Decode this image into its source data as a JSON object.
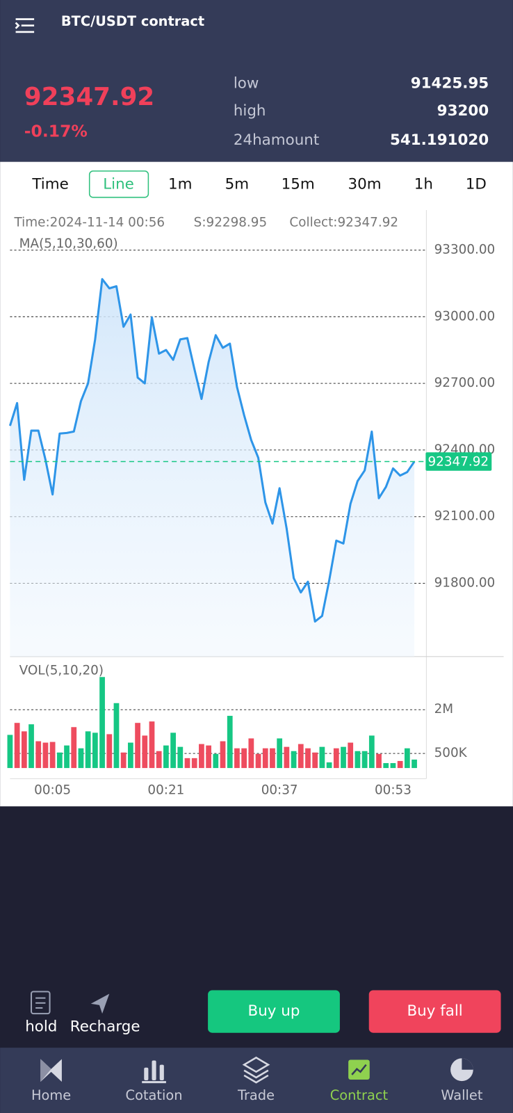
{
  "header": {
    "title": "BTC/USDT contract"
  },
  "ticker": {
    "price": "92347.92",
    "change": "-0.17%",
    "stats": [
      {
        "label": "low",
        "value": "91425.95"
      },
      {
        "label": "high",
        "value": "93200"
      },
      {
        "label": "24hamount",
        "value": "541.191020"
      }
    ]
  },
  "tabs": {
    "items": [
      "Time",
      "Line",
      "1m",
      "5m",
      "15m",
      "30m",
      "1h",
      "1D"
    ],
    "active": 1
  },
  "chart_data": [
    {
      "type": "line",
      "info": [
        "Time:2024-11-14 00:56",
        "S:92298.95",
        "Collect:92347.92"
      ],
      "legend": "MA(5,10,30,60)",
      "series": [
        {
          "color": "#2e95e8",
          "values": [
            92509,
            92611,
            92266,
            92487,
            92487,
            92356,
            92200,
            92474,
            92477,
            92483,
            92620,
            92700,
            92898,
            93169,
            93128,
            93137,
            92955,
            93010,
            92726,
            92700,
            92997,
            92834,
            92850,
            92806,
            92898,
            92904,
            92764,
            92630,
            92796,
            92917,
            92860,
            92879,
            92684,
            92557,
            92445,
            92365,
            92164,
            92069,
            92228,
            92046,
            91823,
            91759,
            91807,
            91628,
            91653,
            91813,
            91992,
            91979,
            92158,
            92260,
            92308,
            92483,
            92183,
            92234,
            92317,
            92285,
            92301,
            92347.92
          ]
        }
      ],
      "ylim": [
        91470,
        93480
      ],
      "yticks": [
        {
          "value": 91800,
          "label": "91800.00"
        },
        {
          "value": 92100,
          "label": "92100.00"
        },
        {
          "value": 92400,
          "label": "92400.00"
        },
        {
          "value": 92700,
          "label": "92700.00"
        },
        {
          "value": 93000,
          "label": "93000.00"
        },
        {
          "value": 93300,
          "label": "93300.00"
        }
      ],
      "grid": true,
      "current_price": 92347.92,
      "current_color": "#16c784"
    },
    {
      "type": "bar",
      "legend": "VOL(5,10,20)",
      "categories": [
        null,
        null,
        null,
        null,
        null,
        null,
        "00:05",
        null,
        null,
        null,
        null,
        null,
        null,
        null,
        null,
        null,
        null,
        null,
        null,
        null,
        null,
        null,
        "00:21",
        null,
        null,
        null,
        null,
        null,
        null,
        null,
        null,
        null,
        null,
        null,
        null,
        null,
        null,
        null,
        "00:37",
        null,
        null,
        null,
        null,
        null,
        null,
        null,
        null,
        null,
        null,
        null,
        null,
        null,
        null,
        null,
        "00:53",
        null,
        null,
        null
      ],
      "series": [
        {
          "values": [
            1137000,
            1548000,
            1258000,
            1500000,
            919000,
            871000,
            895000,
            532000,
            774000,
            1403000,
            677000,
            1258000,
            1210000,
            3121000,
            1161000,
            2226000,
            532000,
            871000,
            1548000,
            1113000,
            1597000,
            581000,
            774000,
            1210000,
            726000,
            339000,
            339000,
            823000,
            774000,
            484000,
            919000,
            1790000,
            677000,
            677000,
            1016000,
            484000,
            677000,
            677000,
            1016000,
            726000,
            581000,
            823000,
            677000,
            532000,
            726000,
            194000,
            677000,
            726000,
            871000,
            581000,
            581000,
            1113000,
            484000,
            169000,
            169000,
            242000,
            677000,
            290000
          ],
          "colors": [
            "#16c784",
            "#ee4c5f",
            "#ee4c5f",
            "#16c784",
            "#ee4c5f",
            "#ee4c5f",
            "#ee4c5f",
            "#16c784",
            "#16c784",
            "#ee4c5f",
            "#16c784",
            "#16c784",
            "#16c784",
            "#16c784",
            "#ee4c5f",
            "#16c784",
            "#ee4c5f",
            "#16c784",
            "#ee4c5f",
            "#ee4c5f",
            "#ee4c5f",
            "#ee4c5f",
            "#16c784",
            "#16c784",
            "#16c784",
            "#ee4c5f",
            "#ee4c5f",
            "#ee4c5f",
            "#ee4c5f",
            "#16c784",
            "#ee4c5f",
            "#16c784",
            "#ee4c5f",
            "#ee4c5f",
            "#ee4c5f",
            "#ee4c5f",
            "#ee4c5f",
            "#ee4c5f",
            "#16c784",
            "#ee4c5f",
            "#16c784",
            "#ee4c5f",
            "#ee4c5f",
            "#ee4c5f",
            "#16c784",
            "#16c784",
            "#ee4c5f",
            "#16c784",
            "#ee4c5f",
            "#16c784",
            "#16c784",
            "#16c784",
            "#ee4c5f",
            "#16c784",
            "#16c784",
            "#ee4c5f",
            "#16c784",
            "#16c784"
          ]
        }
      ],
      "ylim": [
        0,
        3700000
      ],
      "yticks": [
        {
          "value": 500000,
          "label": "500K"
        },
        {
          "value": 2000000,
          "label": "2M"
        }
      ],
      "grid": true
    }
  ],
  "actions": {
    "hold": "hold",
    "recharge": "Recharge",
    "buy_up": "Buy up",
    "buy_fall": "Buy fall"
  },
  "nav": {
    "items": [
      "Home",
      "Cotation",
      "Trade",
      "Contract",
      "Wallet"
    ],
    "active": 3
  }
}
